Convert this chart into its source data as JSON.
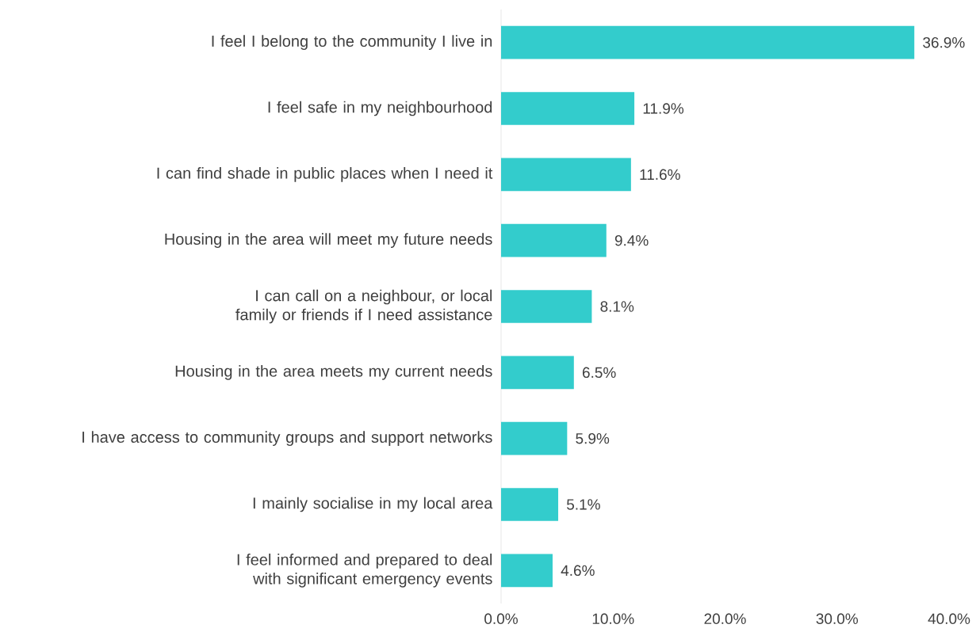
{
  "chart_data": {
    "type": "bar",
    "orientation": "horizontal",
    "categories": [
      "I feel I belong to the community I live in",
      "I feel safe in my neighbourhood",
      "I can find shade in public places when I need it",
      "Housing in the area will meet my future needs",
      "I can call on a neighbour, or local family or friends if I need assistance",
      "Housing in the area meets my current needs",
      "I have access to community groups and support networks",
      "I mainly socialise in my local area",
      "I feel informed and prepared to deal with significant emergency events"
    ],
    "values": [
      36.9,
      11.9,
      11.6,
      9.4,
      8.1,
      6.5,
      5.9,
      5.1,
      4.6
    ],
    "value_labels": [
      "36.9%",
      "11.9%",
      "11.6%",
      "9.4%",
      "8.1%",
      "6.5%",
      "5.9%",
      "5.1%",
      "4.6%"
    ],
    "color": "#33cccc",
    "xlim": [
      0,
      40
    ],
    "xticks": [
      {
        "value": 0,
        "label": "0.0%"
      },
      {
        "value": 10,
        "label": "10.0%"
      },
      {
        "value": 20,
        "label": "20.0%"
      },
      {
        "value": 30,
        "label": "30.0%"
      },
      {
        "value": 40,
        "label": "40.0%"
      }
    ]
  }
}
